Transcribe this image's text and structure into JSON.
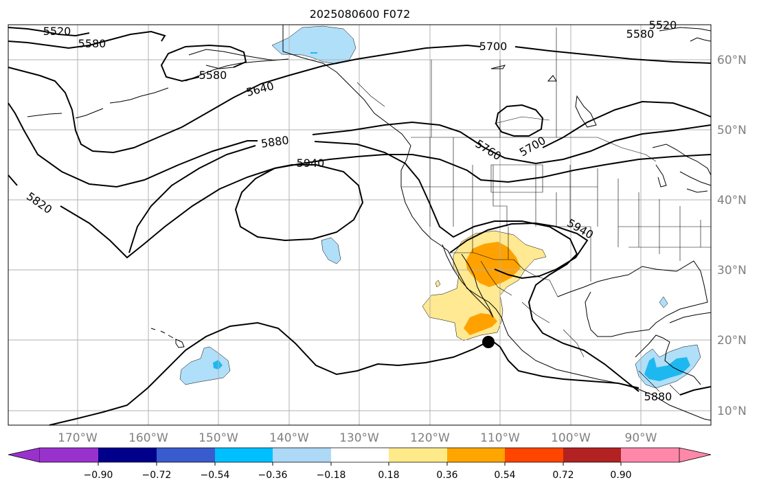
{
  "title": "2025080600 F072",
  "lon_labels": [
    "170°W",
    "160°W",
    "150°W",
    "140°W",
    "130°W",
    "120°W",
    "110°W",
    "100°W",
    "90°W"
  ],
  "lat_labels": [
    "10°N",
    "20°N",
    "30°N",
    "40°N",
    "50°N",
    "60°N"
  ],
  "contour_labels": [
    "5520",
    "5580",
    "5580",
    "5640",
    "5700",
    "5760",
    "5700",
    "5820",
    "5880",
    "5940",
    "5940",
    "5580",
    "5880",
    "5520"
  ],
  "colorbar": {
    "ticks": [
      "−0.90",
      "−0.72",
      "−0.54",
      "−0.36",
      "−0.18",
      "0.18",
      "0.36",
      "0.54",
      "0.72",
      "0.90"
    ],
    "colors": [
      "#9932cc",
      "#00008b",
      "#3a5bcd",
      "#00bfff",
      "#add8f6",
      "#ffffff",
      "#ffea8a",
      "#ffa500",
      "#ff4500",
      "#b22222",
      "#ff88aa"
    ]
  },
  "map_colors": {
    "light_blue": "#b0dff9",
    "blue": "#1eb8f0",
    "light_yellow": "#ffe992",
    "orange": "#ffa200"
  },
  "marker": "storm-center-dot"
}
